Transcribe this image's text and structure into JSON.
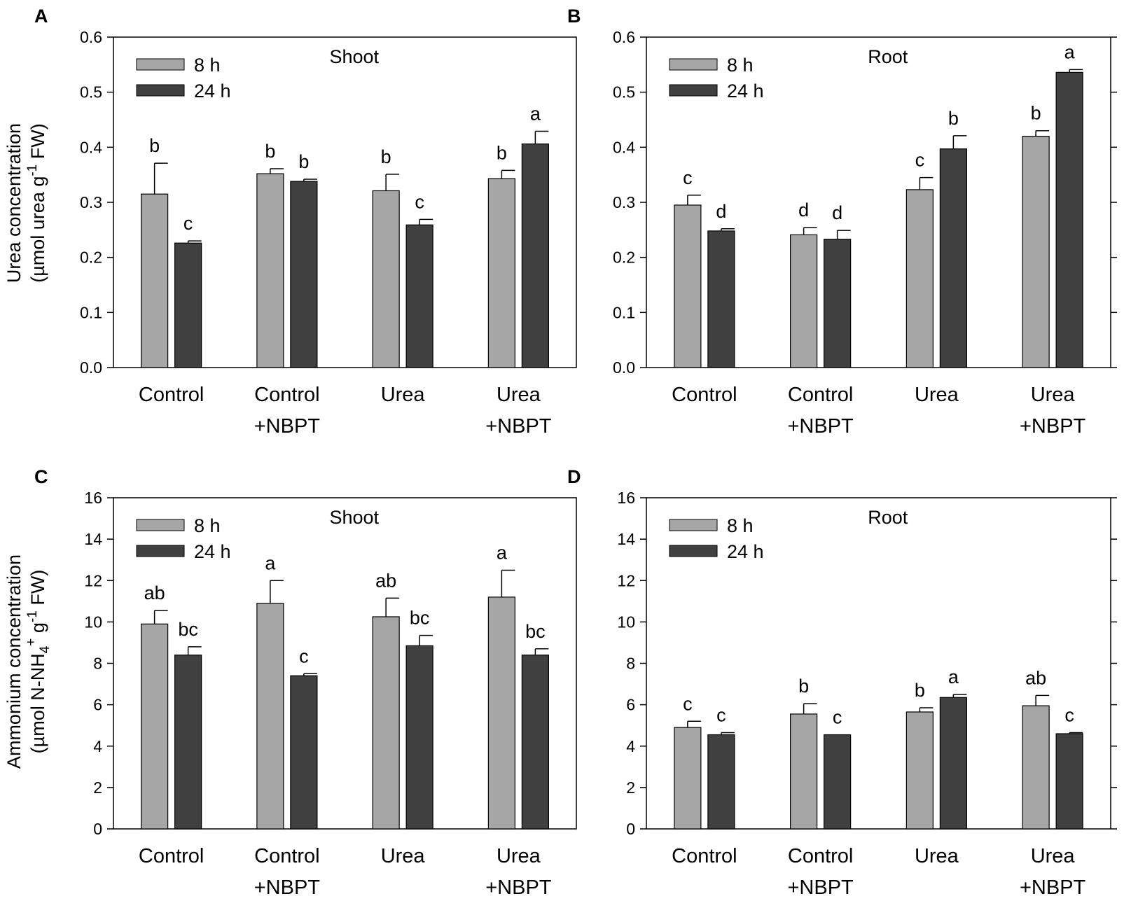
{
  "figure": {
    "y_label_top": {
      "line1": "Urea concentration",
      "line2_pre": "(µmol urea g",
      "line2_sup": "-1",
      "line2_post": " FW)"
    },
    "y_label_bottom": {
      "line1": "Ammonium concentration",
      "line2_pre": "(µmol N-NH",
      "line2_sub": "4",
      "line2_sup": "+",
      "line2_mid": " g",
      "line2_sup2": "-1",
      "line2_post": " FW)"
    }
  },
  "colors": {
    "series_8h": "#a6a6a6",
    "series_24h": "#404040",
    "axis": "#000000"
  },
  "chart_data": [
    {
      "panel": "A",
      "type": "bar",
      "title": "Shoot",
      "categories": [
        [
          "Control"
        ],
        [
          "Control",
          "+NBPT"
        ],
        [
          "Urea"
        ],
        [
          "Urea",
          "+NBPT"
        ]
      ],
      "ylim": [
        0,
        0.6
      ],
      "ytick_step": 0.1,
      "ytick_decimals": 1,
      "legend": "top-left",
      "series": [
        {
          "name": "8 h",
          "values": [
            0.315,
            0.352,
            0.321,
            0.343
          ],
          "errors": [
            0.056,
            0.009,
            0.03,
            0.015
          ],
          "letters": [
            "b",
            "b",
            "b",
            "b"
          ]
        },
        {
          "name": "24 h",
          "values": [
            0.226,
            0.338,
            0.259,
            0.406
          ],
          "errors": [
            0.004,
            0.004,
            0.01,
            0.023
          ],
          "letters": [
            "c",
            "b",
            "c",
            "a"
          ]
        }
      ]
    },
    {
      "panel": "B",
      "type": "bar",
      "title": "Root",
      "categories": [
        [
          "Control"
        ],
        [
          "Control",
          "+NBPT"
        ],
        [
          "Urea"
        ],
        [
          "Urea",
          "+NBPT"
        ]
      ],
      "ylim": [
        0,
        0.6
      ],
      "ytick_step": 0.1,
      "ytick_decimals": 1,
      "legend": "top-left",
      "series": [
        {
          "name": "8 h",
          "values": [
            0.295,
            0.241,
            0.323,
            0.42
          ],
          "errors": [
            0.018,
            0.013,
            0.022,
            0.01
          ],
          "letters": [
            "c",
            "d",
            "c",
            "b"
          ]
        },
        {
          "name": "24 h",
          "values": [
            0.248,
            0.233,
            0.397,
            0.536
          ],
          "errors": [
            0.004,
            0.016,
            0.024,
            0.005
          ],
          "letters": [
            "d",
            "d",
            "b",
            "a"
          ]
        }
      ]
    },
    {
      "panel": "C",
      "type": "bar",
      "title": "Shoot",
      "categories": [
        [
          "Control"
        ],
        [
          "Control",
          "+NBPT"
        ],
        [
          "Urea"
        ],
        [
          "Urea",
          "+NBPT"
        ]
      ],
      "ylim": [
        0,
        16
      ],
      "ytick_step": 2,
      "ytick_decimals": 0,
      "legend": "top-left",
      "series": [
        {
          "name": "8 h",
          "values": [
            9.9,
            10.9,
            10.25,
            11.2
          ],
          "errors": [
            0.65,
            1.1,
            0.9,
            1.3
          ],
          "letters": [
            "ab",
            "a",
            "ab",
            "a"
          ]
        },
        {
          "name": "24 h",
          "values": [
            8.4,
            7.4,
            8.85,
            8.4
          ],
          "errors": [
            0.4,
            0.1,
            0.5,
            0.3
          ],
          "letters": [
            "bc",
            "c",
            "bc",
            "bc"
          ]
        }
      ]
    },
    {
      "panel": "D",
      "type": "bar",
      "title": "Root",
      "categories": [
        [
          "Control"
        ],
        [
          "Control",
          "+NBPT"
        ],
        [
          "Urea"
        ],
        [
          "Urea",
          "+NBPT"
        ]
      ],
      "ylim": [
        0,
        16
      ],
      "ytick_step": 2,
      "ytick_decimals": 0,
      "legend": "top-left",
      "series": [
        {
          "name": "8 h",
          "values": [
            4.9,
            5.55,
            5.65,
            5.95
          ],
          "errors": [
            0.3,
            0.5,
            0.2,
            0.5
          ],
          "letters": [
            "c",
            "b",
            "b",
            "ab"
          ]
        },
        {
          "name": "24 h",
          "values": [
            4.55,
            4.55,
            6.35,
            4.6
          ],
          "errors": [
            0.1,
            0.0,
            0.15,
            0.05
          ],
          "letters": [
            "c",
            "c",
            "a",
            "c"
          ]
        }
      ]
    }
  ]
}
